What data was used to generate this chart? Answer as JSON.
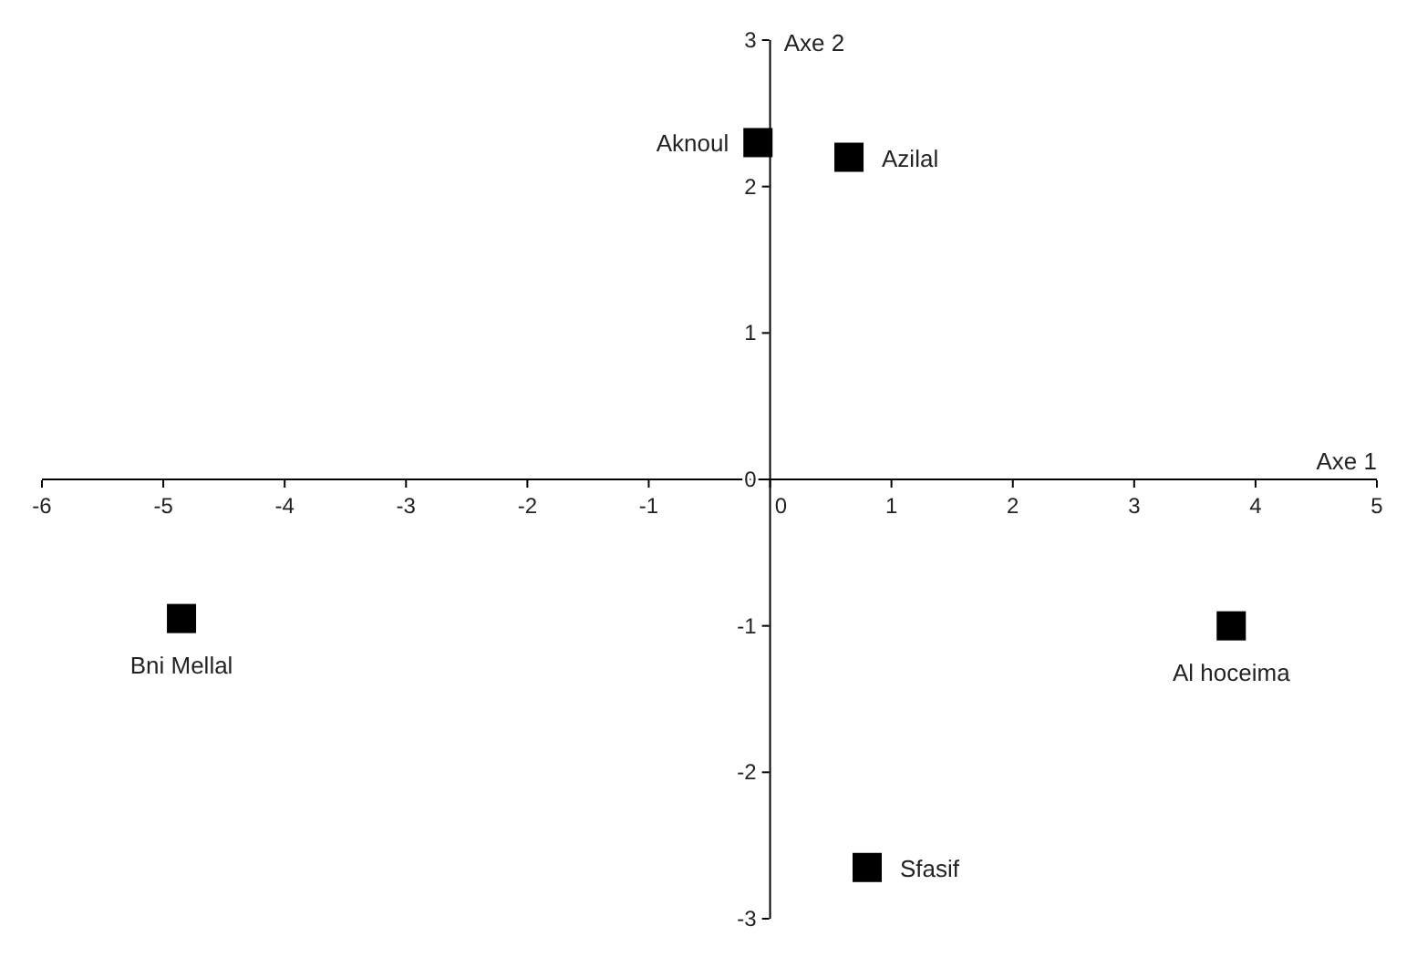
{
  "chart_data": {
    "type": "scatter",
    "xlabel": "Axe 1",
    "ylabel": "Axe 2",
    "xlim": [
      -6,
      5
    ],
    "ylim": [
      -3,
      3
    ],
    "xticks": [
      -6,
      -5,
      -4,
      -3,
      -2,
      -1,
      0,
      1,
      2,
      3,
      4,
      5
    ],
    "yticks": [
      -3,
      -2,
      -1,
      0,
      1,
      2,
      3
    ],
    "marker": "square",
    "grid": false,
    "legend": false,
    "series": [
      {
        "name": "Aknoul",
        "color": "#000000",
        "x": [
          -0.1
        ],
        "values": [
          2.3
        ]
      },
      {
        "name": "Azilal",
        "color": "#000000",
        "x": [
          0.65
        ],
        "values": [
          2.2
        ]
      },
      {
        "name": "Bni Mellal",
        "color": "#000000",
        "x": [
          -4.85
        ],
        "values": [
          -0.95
        ]
      },
      {
        "name": "Al hoceima",
        "color": "#000000",
        "x": [
          3.8
        ],
        "values": [
          -1.0
        ]
      },
      {
        "name": "Sfasif",
        "color": "#000000",
        "x": [
          0.8
        ],
        "values": [
          -2.65
        ]
      }
    ]
  }
}
